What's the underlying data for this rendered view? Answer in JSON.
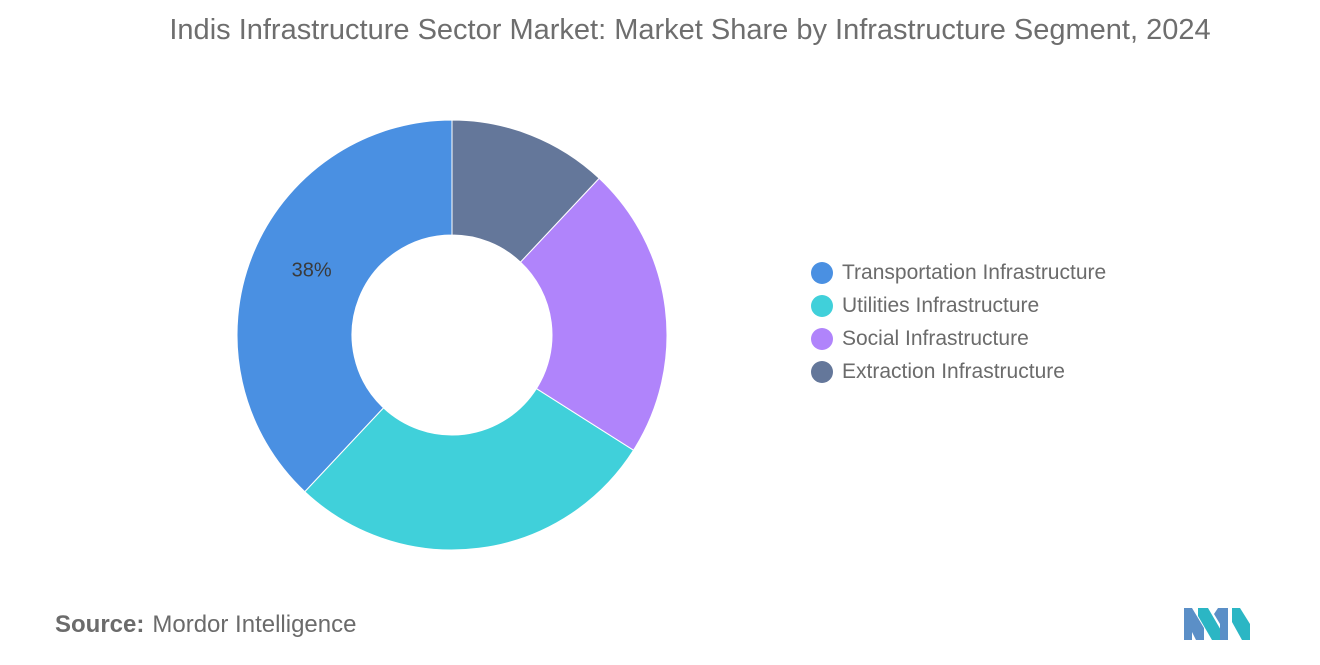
{
  "title": "Indis Infrastructure Sector Market: Market Share by Infrastructure Segment, 2024",
  "source": {
    "label": "Source:",
    "value": "Mordor Intelligence"
  },
  "chart_data": {
    "type": "pie",
    "style": "donut",
    "title": "Indis Infrastructure Sector Market: Market Share by Infrastructure Segment, 2024",
    "legend_position": "right",
    "categories": [
      "Transportation Infrastructure",
      "Utilities Infrastructure",
      "Social Infrastructure",
      "Extraction Infrastructure"
    ],
    "values": [
      38,
      28,
      22,
      12
    ],
    "unit": "%",
    "data_labels": [
      "38%",
      "",
      "",
      ""
    ],
    "colors": [
      "#4a90e2",
      "#40d0da",
      "#b084fb",
      "#64779a"
    ],
    "start_angle_deg": 0,
    "direction": "counterclockwise"
  }
}
